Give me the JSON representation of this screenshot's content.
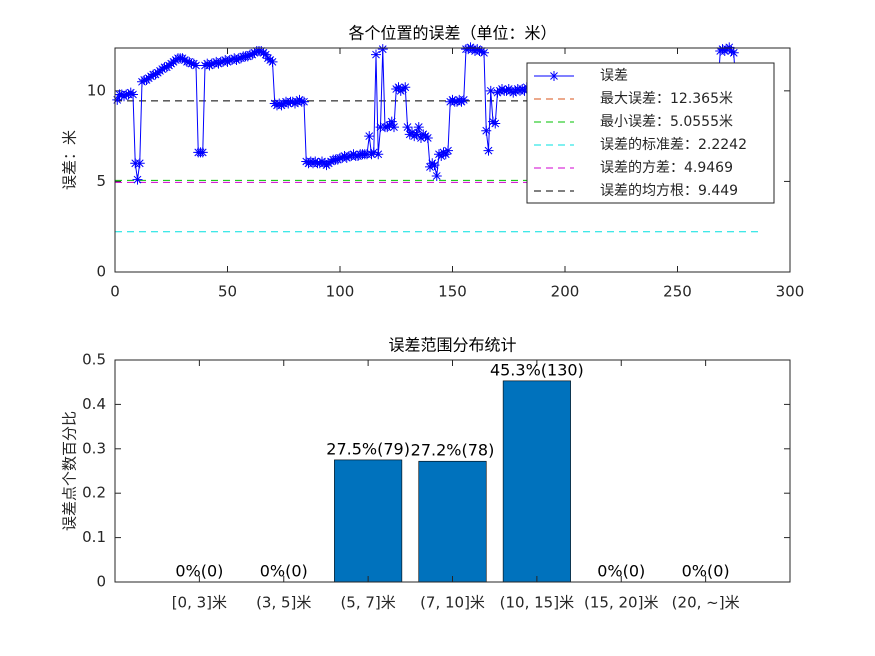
{
  "chart_data": [
    {
      "type": "line",
      "title": "各个位置的误差（单位：米）",
      "y_label": "误差：米",
      "xlim": [
        0,
        300
      ],
      "xticks": [
        0,
        50,
        100,
        150,
        200,
        250,
        300
      ],
      "ylim": [
        0,
        12.365
      ],
      "yticks": [
        0,
        5,
        10
      ],
      "legend": "northeast",
      "series": [
        {
          "name": "误差",
          "color": "#0000ff",
          "marker": "*",
          "x": [
            1,
            2,
            3,
            4,
            5,
            6,
            7,
            8,
            9,
            10,
            11,
            12,
            13,
            14,
            15,
            16,
            17,
            18,
            19,
            20,
            21,
            22,
            23,
            24,
            25,
            26,
            27,
            28,
            29,
            30,
            31,
            32,
            33,
            34,
            35,
            36,
            37,
            38,
            39,
            40,
            41,
            42,
            43,
            44,
            45,
            46,
            47,
            48,
            49,
            50,
            51,
            52,
            53,
            54,
            55,
            56,
            57,
            58,
            59,
            60,
            61,
            62,
            63,
            64,
            65,
            66,
            67,
            68,
            69,
            70,
            71,
            72,
            73,
            74,
            75,
            76,
            77,
            78,
            79,
            80,
            81,
            82,
            83,
            84,
            85,
            86,
            87,
            88,
            89,
            90,
            91,
            92,
            93,
            94,
            95,
            96,
            97,
            98,
            99,
            100,
            101,
            102,
            103,
            104,
            105,
            106,
            107,
            108,
            109,
            110,
            111,
            112,
            113,
            114,
            115,
            116,
            117,
            118,
            119,
            120,
            121,
            122,
            123,
            124,
            125,
            126,
            127,
            128,
            129,
            130,
            131,
            132,
            133,
            134,
            135,
            136,
            137,
            138,
            139,
            140,
            141,
            142,
            143,
            144,
            145,
            146,
            147,
            148,
            149,
            150,
            151,
            152,
            153,
            154,
            155,
            156,
            157,
            158,
            159,
            160,
            161,
            162,
            163,
            164,
            165,
            166,
            167,
            168,
            169,
            170,
            171,
            172,
            173,
            174,
            175,
            176,
            177,
            178,
            179,
            180,
            181,
            182,
            183,
            184,
            185,
            186,
            187,
            188,
            189,
            190,
            191,
            192,
            193,
            194,
            195,
            196,
            197,
            198,
            199,
            200,
            201,
            202,
            203,
            204,
            205,
            206,
            207,
            208,
            209,
            210,
            211,
            212,
            213,
            214,
            215,
            216,
            217,
            218,
            219,
            220,
            221,
            222,
            223,
            224,
            225,
            226,
            227,
            228,
            229,
            230,
            231,
            232,
            233,
            234,
            235,
            236,
            237,
            238,
            239,
            240,
            241,
            242,
            243,
            244,
            245,
            246,
            247,
            248,
            249,
            250,
            251,
            252,
            253,
            254,
            255,
            256,
            257,
            258,
            259,
            260,
            261,
            262,
            263,
            264,
            265,
            266,
            267,
            268,
            269,
            270,
            271,
            272,
            273,
            274,
            275,
            276,
            277,
            278,
            279,
            280,
            281,
            282,
            283,
            284,
            285,
            286,
            287
          ],
          "values": [
            9.5,
            9.8,
            9.8,
            9.7,
            9.8,
            9.8,
            9.9,
            9.8,
            6.0,
            5.1,
            6.0,
            10.5,
            10.6,
            10.6,
            10.7,
            10.8,
            10.9,
            10.9,
            11.0,
            11.1,
            11.2,
            11.3,
            11.3,
            11.4,
            11.5,
            11.6,
            11.7,
            11.8,
            11.8,
            11.8,
            11.7,
            11.6,
            11.6,
            11.5,
            11.5,
            11.4,
            6.6,
            6.6,
            6.6,
            11.4,
            11.5,
            11.4,
            11.5,
            11.5,
            11.6,
            11.5,
            11.6,
            11.6,
            11.7,
            11.6,
            11.7,
            11.7,
            11.8,
            11.7,
            11.8,
            11.8,
            11.9,
            11.9,
            11.9,
            12.0,
            12.0,
            12.1,
            12.2,
            12.2,
            12.2,
            12.1,
            12.0,
            11.8,
            11.7,
            11.6,
            9.3,
            9.2,
            9.3,
            9.2,
            9.3,
            9.4,
            9.3,
            9.4,
            9.4,
            9.3,
            9.4,
            9.5,
            9.4,
            9.4,
            6.1,
            6.0,
            6.1,
            6.0,
            6.1,
            6.0,
            6.0,
            6.1,
            6.0,
            5.9,
            6.0,
            6.1,
            6.2,
            6.2,
            6.2,
            6.3,
            6.3,
            6.4,
            6.3,
            6.4,
            6.4,
            6.5,
            6.4,
            6.4,
            6.5,
            6.5,
            6.5,
            6.5,
            7.5,
            6.5,
            6.6,
            12.0,
            6.5,
            8.0,
            12.3,
            8.0,
            8.0,
            8.1,
            8.3,
            8.0,
            10.1,
            10.2,
            10.0,
            10.1,
            10.2,
            8.0,
            7.6,
            7.7,
            7.5,
            7.6,
            8.0,
            7.4,
            7.6,
            7.5,
            7.4,
            5.8,
            6.0,
            5.9,
            5.3,
            6.5,
            6.4,
            6.6,
            6.5,
            6.7,
            9.4,
            9.5,
            9.4,
            9.4,
            9.5,
            9.4,
            9.5,
            12.3,
            12.3,
            12.4,
            12.3,
            12.2,
            12.3,
            12.2,
            12.2,
            12.1,
            7.8,
            6.7,
            10.0,
            8.3,
            8.2,
            9.9,
            10.0,
            10.1,
            10.0,
            10.0,
            10.1,
            10.0,
            9.9,
            10.0,
            10.1,
            10.0,
            10.1,
            10.0,
            10.2,
            10.1,
            10.0,
            9.9,
            10.0,
            10.1,
            10.2,
            10.1,
            10.0,
            10.1,
            9.9,
            10.0,
            10.0,
            10.1,
            10.2,
            10.0,
            9.9,
            10.0,
            10.1,
            10.0,
            10.1,
            10.2,
            10.1,
            10.0,
            9.9,
            10.0,
            10.1,
            10.0,
            10.0,
            10.1,
            10.0,
            9.9,
            10.0,
            10.1,
            10.0,
            10.2,
            10.1,
            10.0,
            9.9,
            10.0,
            10.1,
            10.0,
            10.0,
            10.1,
            10.0,
            9.9,
            10.0,
            10.1,
            10.2,
            10.1,
            10.0,
            10.0,
            10.1,
            10.0,
            9.9,
            10.0,
            10.1,
            10.0,
            10.0,
            10.1,
            10.2,
            10.1,
            10.0,
            9.9,
            10.0,
            10.1,
            10.0,
            10.0,
            10.1,
            10.0,
            9.9,
            10.0,
            10.1,
            10.2,
            10.1,
            10.0,
            10.0,
            10.1,
            10.0,
            9.9,
            10.0,
            10.1,
            10.0,
            10.1,
            10.2,
            10.1,
            12.2,
            12.3,
            12.2,
            12.3,
            12.4,
            12.2,
            12.1,
            10.0,
            10.1,
            10.0,
            9.9,
            10.0,
            10.1,
            10.0,
            10.1,
            10.0,
            9.9,
            10.0,
            10.1
          ]
        }
      ],
      "reference_lines": [
        {
          "name": "最大误差：12.365米",
          "color": "#d95319",
          "y": 12.365,
          "x": [
            0,
            288
          ]
        },
        {
          "name": "最小误差：5.0555米",
          "color": "#00c000",
          "y": 5.0555,
          "x": [
            0,
            288
          ]
        },
        {
          "name": "误差的标准差：2.2242",
          "color": "#00e0e0",
          "y": 2.2242,
          "x": [
            0,
            288
          ]
        },
        {
          "name": "误差的方差：4.9469",
          "color": "#d000d0",
          "y": 4.9469,
          "x": [
            0,
            288
          ]
        },
        {
          "name": "误差的均方根：9.449",
          "color": "#000000",
          "y": 9.449,
          "x": [
            0,
            288
          ]
        }
      ]
    },
    {
      "type": "bar",
      "title": "误差范围分布统计",
      "y_label": "误差点个数百分比",
      "categories": [
        "[0, 3]米",
        "(3, 5]米",
        "(5, 7]米",
        "(7, 10]米",
        "(10, 15]米",
        "(15, 20]米",
        "(20, ~]米"
      ],
      "values": [
        0,
        0,
        0.275,
        0.272,
        0.453,
        0,
        0
      ],
      "value_labels": [
        "0%(0)",
        "0%(0)",
        "27.5%(79)",
        "27.2%(78)",
        "45.3%(130)",
        "0%(0)",
        "0%(0)"
      ],
      "color": "#0072bd",
      "ylim": [
        0,
        0.5
      ],
      "yticks": [
        0,
        0.1,
        0.2,
        0.3,
        0.4,
        0.5
      ]
    }
  ]
}
